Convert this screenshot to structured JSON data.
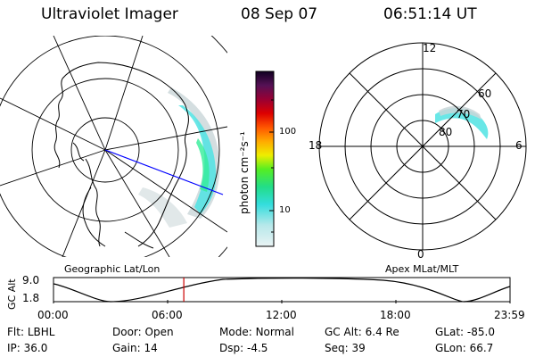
{
  "header": {
    "instrument": "Ultraviolet Imager",
    "date": "08 Sep 07",
    "time": "06:51:14 UT"
  },
  "colorbar": {
    "label": "photon cm⁻²s⁻¹",
    "ticks": [
      "100",
      "10"
    ]
  },
  "polar_plot": {
    "mlt_labels": {
      "top": "12",
      "left": "18",
      "right": "6",
      "bottom": "0"
    },
    "lat_labels": [
      "60",
      "70",
      "80"
    ]
  },
  "map_labels": {
    "left": "Geographic Lat/Lon",
    "right": "Apex MLat/MLT"
  },
  "altitude_panel": {
    "ylabel": "GC Alt",
    "yticks": [
      "9.0",
      "1.8"
    ],
    "xticks": [
      "00:00",
      "06:00",
      "12:00",
      "18:00",
      "23:59"
    ],
    "current_time_hours": 6.85
  },
  "status": {
    "row1": [
      {
        "key": "Flt:",
        "value": "LBHL"
      },
      {
        "key": "Door:",
        "value": "Open"
      },
      {
        "key": "Mode:",
        "value": "Normal"
      },
      {
        "key": "GC Alt:",
        "value": "6.4 Re"
      },
      {
        "key": "GLat:",
        "value": "-85.0"
      }
    ],
    "row2": [
      {
        "key": "IP:",
        "value": "36.0"
      },
      {
        "key": "Gain:",
        "value": "14"
      },
      {
        "key": "Dsp:",
        "value": "-4.5"
      },
      {
        "key": "Seq:",
        "value": "39"
      },
      {
        "key": "GLon:",
        "value": "66.7"
      }
    ]
  },
  "colors": {
    "aurora_low": "#c9d6d8",
    "aurora_mid": "#4fe3e3",
    "aurora_high": "#33ee99",
    "marker_line": "#cc0000",
    "track_line": "#0000ff"
  }
}
